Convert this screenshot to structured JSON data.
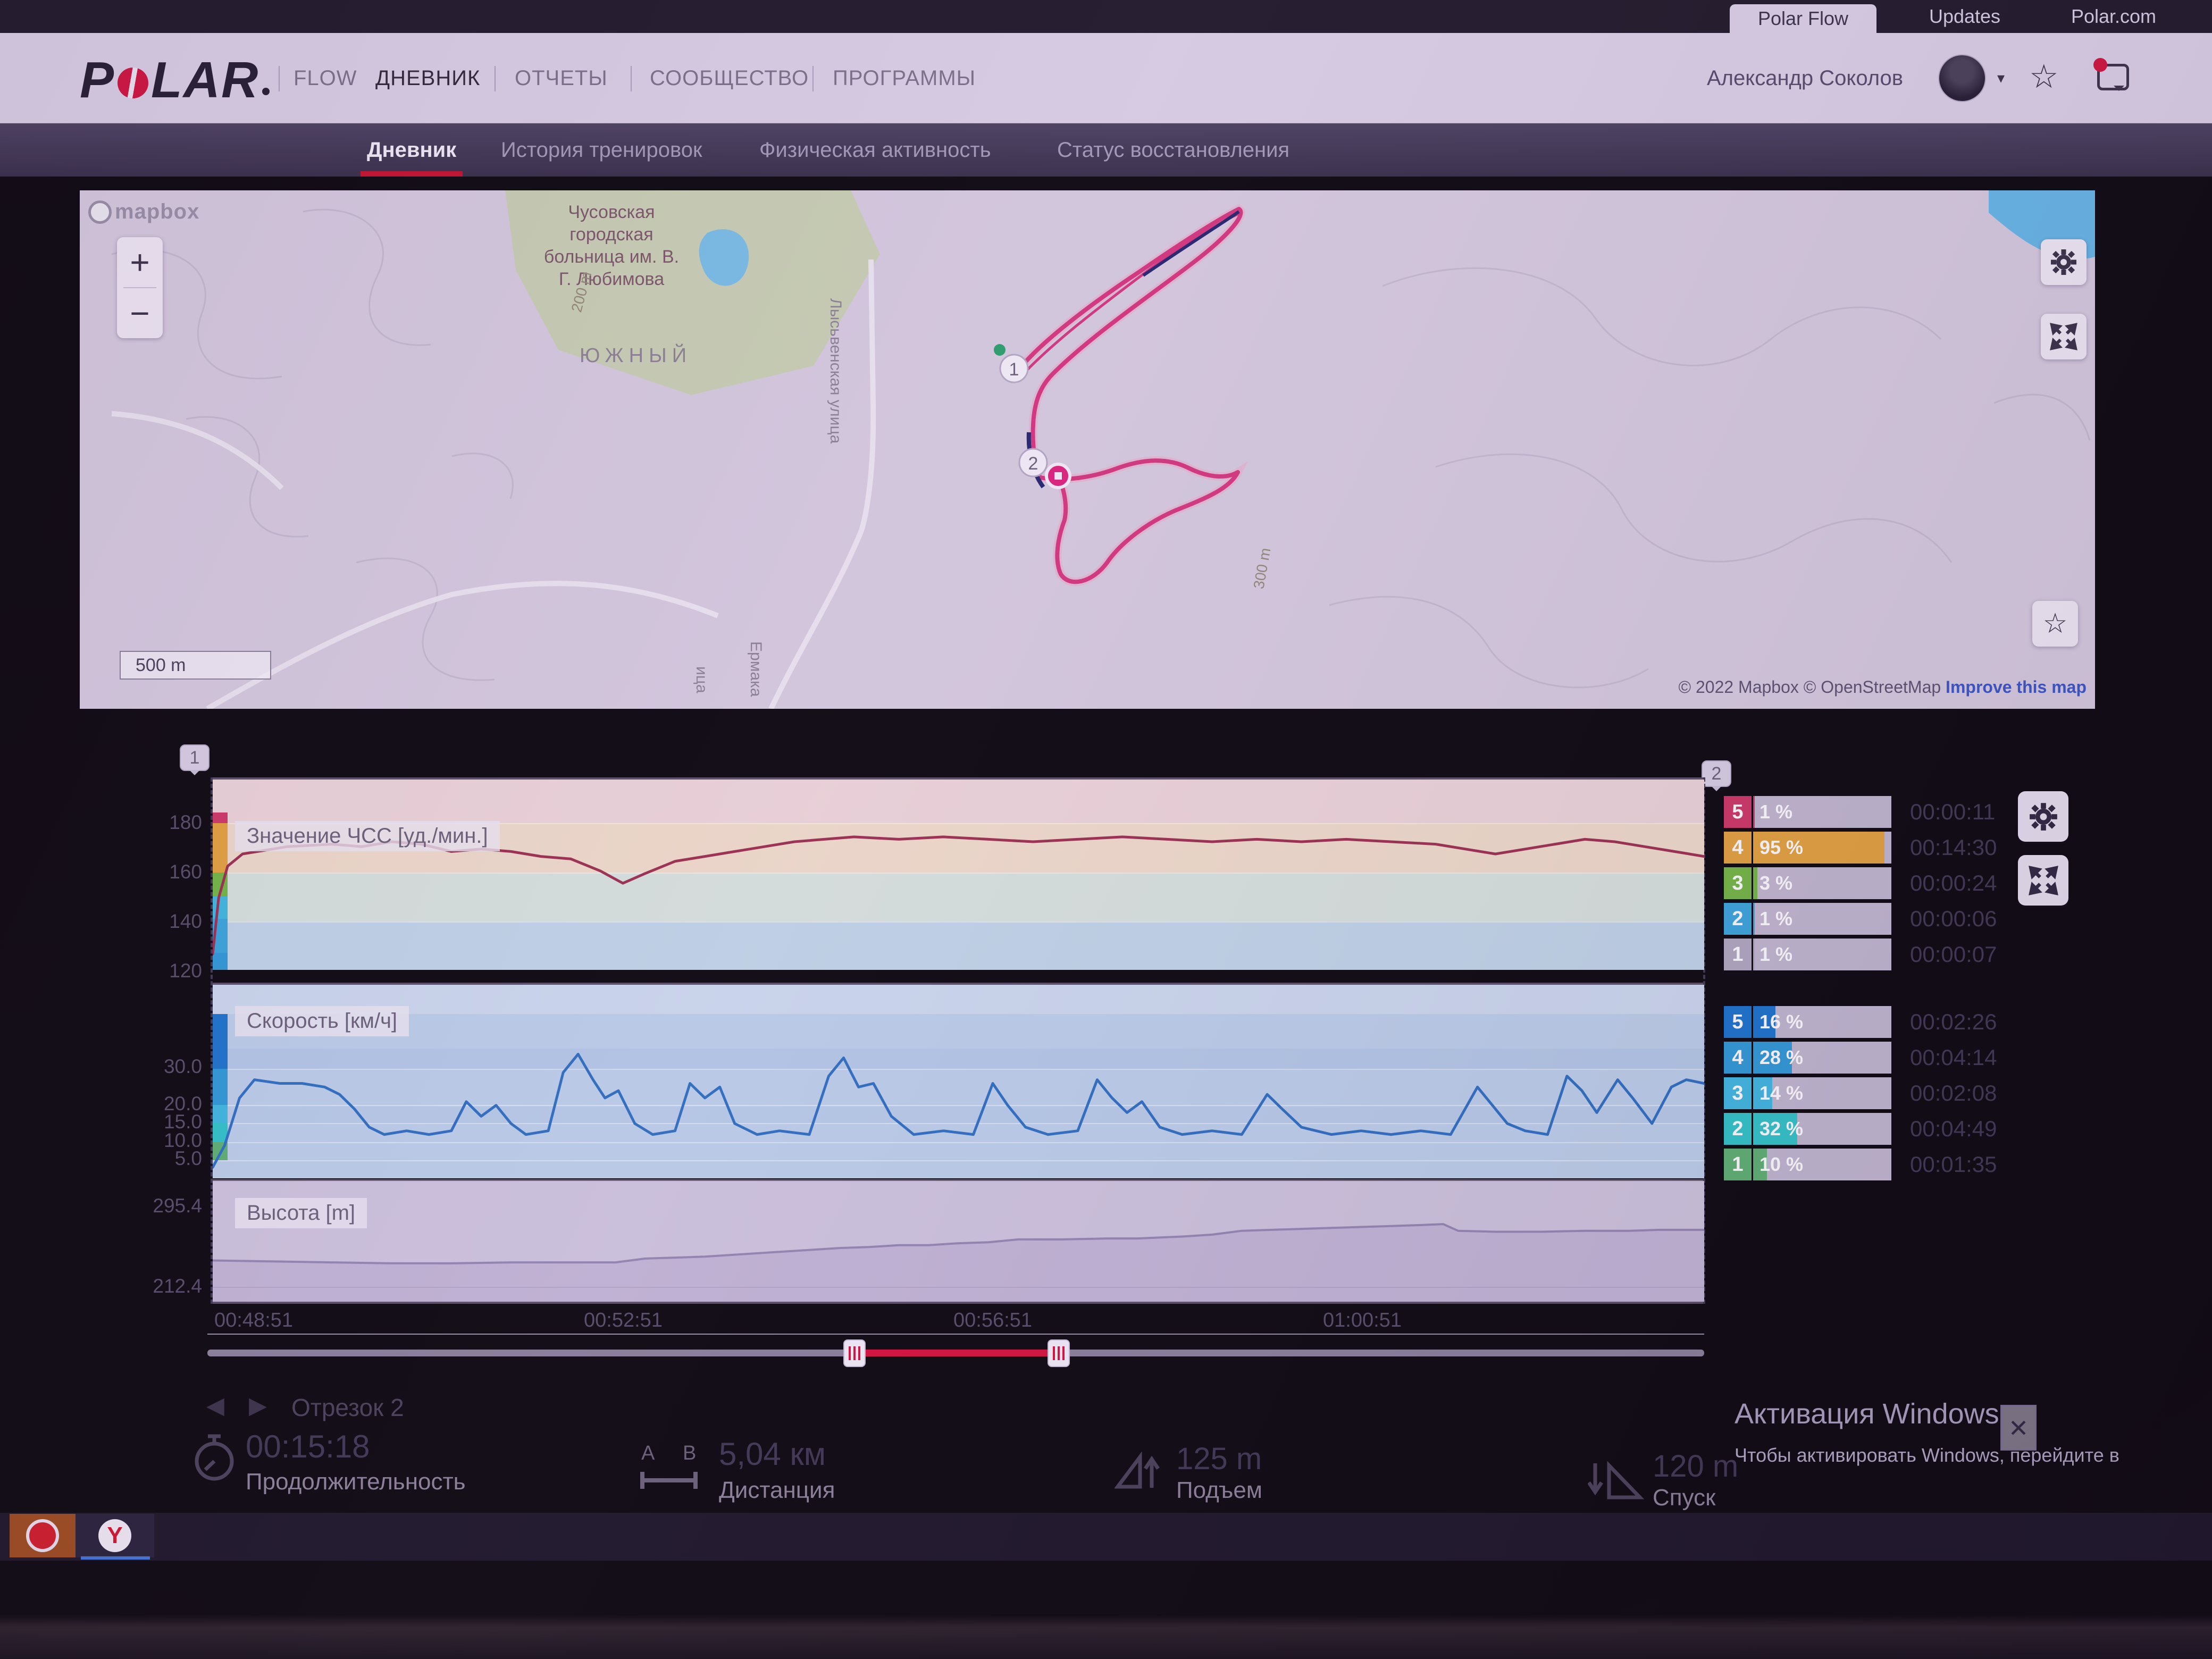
{
  "colors": {
    "accent_red": "#d0143c",
    "hr_line": "#9e2f50",
    "speed_line": "#2e6fc2",
    "zone_bar_bg": "#c2b8d0"
  },
  "topbar": {
    "tabs": [
      {
        "label": "Polar Flow",
        "active": true
      },
      {
        "label": "Updates",
        "active": false
      },
      {
        "label": "Polar.com",
        "active": false
      }
    ]
  },
  "header": {
    "logo_p": "P",
    "logo_lar": "LAR",
    "flow": "FLOW",
    "nav": [
      {
        "label": "ДНЕВНИК",
        "active": true
      },
      {
        "label": "ОТЧЕТЫ",
        "active": false
      },
      {
        "label": "СООБЩЕСТВО",
        "active": false
      },
      {
        "label": "ПРОГРАММЫ",
        "active": false
      }
    ],
    "user_name": "Александр Соколов"
  },
  "subnav": {
    "items": [
      {
        "label": "Дневник",
        "active": true
      },
      {
        "label": "История тренировок",
        "active": false
      },
      {
        "label": "Физическая активность",
        "active": false
      },
      {
        "label": "Статус восстановления",
        "active": false
      }
    ]
  },
  "map": {
    "logo": "mapbox",
    "zoom_in": "+",
    "zoom_out": "−",
    "hospital_line1": "Чусовская городская",
    "hospital_line2": "больница им. В.",
    "hospital_line3": "Г. Любимова",
    "district": "ЮЖНЫЙ",
    "street_1": "Лысьвенская улица",
    "street_2": "Ермака",
    "street_3": "ица",
    "contour_a": "200 m",
    "contour_b": "300 m",
    "scale": "500 m",
    "attribution": "© 2022 Mapbox © OpenStreetMap",
    "improve_link": "Improve this map",
    "marker_start": "1",
    "marker_end": "2"
  },
  "charts": {
    "lap_marker_1": "1",
    "lap_marker_2": "2",
    "hr": {
      "label": "Значение ЧСС [уд./мин.]",
      "yticks": [
        "180",
        "160",
        "140",
        "120"
      ],
      "zones": [
        {
          "zone": "5",
          "pct": "1 %",
          "value": 1,
          "time": "00:00:11",
          "color": "#cf3766"
        },
        {
          "zone": "4",
          "pct": "95 %",
          "value": 95,
          "time": "00:14:30",
          "color": "#e5a33c"
        },
        {
          "zone": "3",
          "pct": "3 %",
          "value": 3,
          "time": "00:00:24",
          "color": "#74b844"
        },
        {
          "zone": "2",
          "pct": "1 %",
          "value": 1,
          "time": "00:00:06",
          "color": "#3aa7de"
        },
        {
          "zone": "1",
          "pct": "1 %",
          "value": 1,
          "time": "00:00:07",
          "color": "#b3a9c0"
        }
      ]
    },
    "speed": {
      "label": "Скорость [км/ч]",
      "yticks": [
        "30.0",
        "20.0",
        "15.0",
        "10.0",
        "5.0"
      ],
      "zones": [
        {
          "zone": "5",
          "pct": "16 %",
          "value": 16,
          "time": "00:02:26",
          "color": "#1b74cd"
        },
        {
          "zone": "4",
          "pct": "28 %",
          "value": 28,
          "time": "00:04:14",
          "color": "#2f9ad8"
        },
        {
          "zone": "3",
          "pct": "14 %",
          "value": 14,
          "time": "00:02:08",
          "color": "#3fb9e1"
        },
        {
          "zone": "2",
          "pct": "32 %",
          "value": 32,
          "time": "00:04:49",
          "color": "#30c5c9"
        },
        {
          "zone": "1",
          "pct": "10 %",
          "value": 10,
          "time": "00:01:35",
          "color": "#5eb272"
        }
      ]
    },
    "altitude": {
      "label": "Высота [m]",
      "yticks": [
        "295.4",
        "212.4"
      ]
    },
    "xticks": [
      "00:48:51",
      "00:52:51",
      "00:56:51",
      "01:00:51"
    ]
  },
  "chart_data": [
    {
      "name": "hr",
      "type": "line",
      "title": "Значение ЧСС [уд./мин.]",
      "color": "#9e2f50",
      "stroke_width": 5,
      "ylim": [
        120.5,
        198.5
      ],
      "x_axis": [
        "00:48:51",
        "01:04:51"
      ],
      "points": [
        [
          0,
          127
        ],
        [
          0.004,
          150
        ],
        [
          0.01,
          163
        ],
        [
          0.02,
          168
        ],
        [
          0.05,
          171
        ],
        [
          0.08,
          172
        ],
        [
          0.1,
          171
        ],
        [
          0.12,
          173
        ],
        [
          0.14,
          172
        ],
        [
          0.16,
          169
        ],
        [
          0.18,
          170
        ],
        [
          0.2,
          169
        ],
        [
          0.22,
          167
        ],
        [
          0.24,
          166
        ],
        [
          0.26,
          161
        ],
        [
          0.275,
          156
        ],
        [
          0.29,
          160
        ],
        [
          0.31,
          165
        ],
        [
          0.33,
          167
        ],
        [
          0.35,
          169
        ],
        [
          0.37,
          171
        ],
        [
          0.39,
          173
        ],
        [
          0.41,
          174
        ],
        [
          0.43,
          175
        ],
        [
          0.46,
          174
        ],
        [
          0.49,
          175
        ],
        [
          0.52,
          174
        ],
        [
          0.55,
          173
        ],
        [
          0.58,
          174
        ],
        [
          0.61,
          175
        ],
        [
          0.64,
          174
        ],
        [
          0.67,
          173
        ],
        [
          0.7,
          174
        ],
        [
          0.73,
          173
        ],
        [
          0.76,
          174
        ],
        [
          0.79,
          173
        ],
        [
          0.82,
          172
        ],
        [
          0.84,
          170
        ],
        [
          0.86,
          168
        ],
        [
          0.88,
          170
        ],
        [
          0.9,
          172
        ],
        [
          0.92,
          174
        ],
        [
          0.94,
          173
        ],
        [
          0.96,
          171
        ],
        [
          0.98,
          169
        ],
        [
          1,
          167
        ]
      ]
    },
    {
      "name": "speed",
      "type": "line",
      "title": "Скорость [км/ч]",
      "color": "#2e6fc2",
      "stroke_width": 5,
      "ylim": [
        0,
        45
      ],
      "points": [
        [
          0,
          3
        ],
        [
          0.008,
          9
        ],
        [
          0.018,
          22
        ],
        [
          0.028,
          27
        ],
        [
          0.045,
          26
        ],
        [
          0.06,
          26
        ],
        [
          0.075,
          25
        ],
        [
          0.085,
          23
        ],
        [
          0.095,
          19
        ],
        [
          0.105,
          14
        ],
        [
          0.115,
          12
        ],
        [
          0.13,
          13
        ],
        [
          0.145,
          12
        ],
        [
          0.16,
          13
        ],
        [
          0.17,
          21
        ],
        [
          0.18,
          17
        ],
        [
          0.19,
          20
        ],
        [
          0.2,
          15
        ],
        [
          0.21,
          12
        ],
        [
          0.225,
          13
        ],
        [
          0.235,
          29
        ],
        [
          0.245,
          34
        ],
        [
          0.255,
          27
        ],
        [
          0.263,
          22
        ],
        [
          0.272,
          24
        ],
        [
          0.283,
          15
        ],
        [
          0.295,
          12
        ],
        [
          0.31,
          13
        ],
        [
          0.32,
          26
        ],
        [
          0.33,
          22
        ],
        [
          0.34,
          25
        ],
        [
          0.35,
          15
        ],
        [
          0.365,
          12
        ],
        [
          0.38,
          13
        ],
        [
          0.4,
          12
        ],
        [
          0.413,
          28
        ],
        [
          0.423,
          33
        ],
        [
          0.433,
          25
        ],
        [
          0.443,
          26
        ],
        [
          0.455,
          17
        ],
        [
          0.47,
          12
        ],
        [
          0.49,
          13
        ],
        [
          0.51,
          12
        ],
        [
          0.523,
          26
        ],
        [
          0.533,
          20
        ],
        [
          0.545,
          14
        ],
        [
          0.56,
          12
        ],
        [
          0.58,
          13
        ],
        [
          0.593,
          27
        ],
        [
          0.603,
          22
        ],
        [
          0.613,
          18
        ],
        [
          0.623,
          21
        ],
        [
          0.635,
          14
        ],
        [
          0.65,
          12
        ],
        [
          0.67,
          13
        ],
        [
          0.69,
          12
        ],
        [
          0.707,
          23
        ],
        [
          0.717,
          19
        ],
        [
          0.73,
          14
        ],
        [
          0.75,
          12
        ],
        [
          0.77,
          13
        ],
        [
          0.79,
          12
        ],
        [
          0.81,
          13
        ],
        [
          0.83,
          12
        ],
        [
          0.848,
          25
        ],
        [
          0.858,
          20
        ],
        [
          0.868,
          15
        ],
        [
          0.88,
          13
        ],
        [
          0.895,
          12
        ],
        [
          0.908,
          28
        ],
        [
          0.918,
          24
        ],
        [
          0.928,
          18
        ],
        [
          0.942,
          27
        ],
        [
          0.952,
          22
        ],
        [
          0.965,
          15
        ],
        [
          0.978,
          25
        ],
        [
          0.988,
          27
        ],
        [
          1,
          26
        ]
      ]
    },
    {
      "name": "altitude",
      "type": "area",
      "title": "Высота [m]",
      "color": "#9486b2",
      "fill": "#c3b6d6",
      "stroke_width": 4,
      "ylim": [
        197,
        323
      ],
      "area": true,
      "points": [
        [
          0,
          240
        ],
        [
          0.04,
          239
        ],
        [
          0.08,
          238
        ],
        [
          0.12,
          237
        ],
        [
          0.16,
          237
        ],
        [
          0.2,
          238
        ],
        [
          0.24,
          238
        ],
        [
          0.27,
          238
        ],
        [
          0.29,
          242
        ],
        [
          0.31,
          243
        ],
        [
          0.33,
          244
        ],
        [
          0.36,
          247
        ],
        [
          0.38,
          249
        ],
        [
          0.4,
          251
        ],
        [
          0.42,
          253
        ],
        [
          0.44,
          254
        ],
        [
          0.46,
          256
        ],
        [
          0.48,
          256
        ],
        [
          0.5,
          258
        ],
        [
          0.52,
          259
        ],
        [
          0.54,
          262
        ],
        [
          0.57,
          262
        ],
        [
          0.6,
          263
        ],
        [
          0.62,
          263
        ],
        [
          0.65,
          265
        ],
        [
          0.67,
          267
        ],
        [
          0.69,
          271
        ],
        [
          0.71,
          272
        ],
        [
          0.73,
          273
        ],
        [
          0.75,
          274
        ],
        [
          0.77,
          275
        ],
        [
          0.79,
          276
        ],
        [
          0.81,
          277
        ],
        [
          0.825,
          278
        ],
        [
          0.835,
          271
        ],
        [
          0.86,
          270
        ],
        [
          0.89,
          270
        ],
        [
          0.92,
          271
        ],
        [
          0.95,
          271
        ],
        [
          0.97,
          272
        ],
        [
          1,
          272
        ]
      ]
    }
  ],
  "summary": {
    "prev": "◀",
    "next": "▶",
    "segment": "Отрезок 2",
    "duration_value": "00:15:18",
    "duration_label": "Продолжительность",
    "dist_a": "A",
    "dist_b": "B",
    "distance_value": "5,04 км",
    "distance_label": "Дистанция",
    "ascent_value": "125 m",
    "ascent_label": "Подъем",
    "descent_value": "120 m",
    "descent_label": "Спуск"
  },
  "windows_activation": {
    "title": "Активация Windows",
    "subtitle": "Чтобы активировать Windows, перейдите в",
    "close": "✕"
  }
}
